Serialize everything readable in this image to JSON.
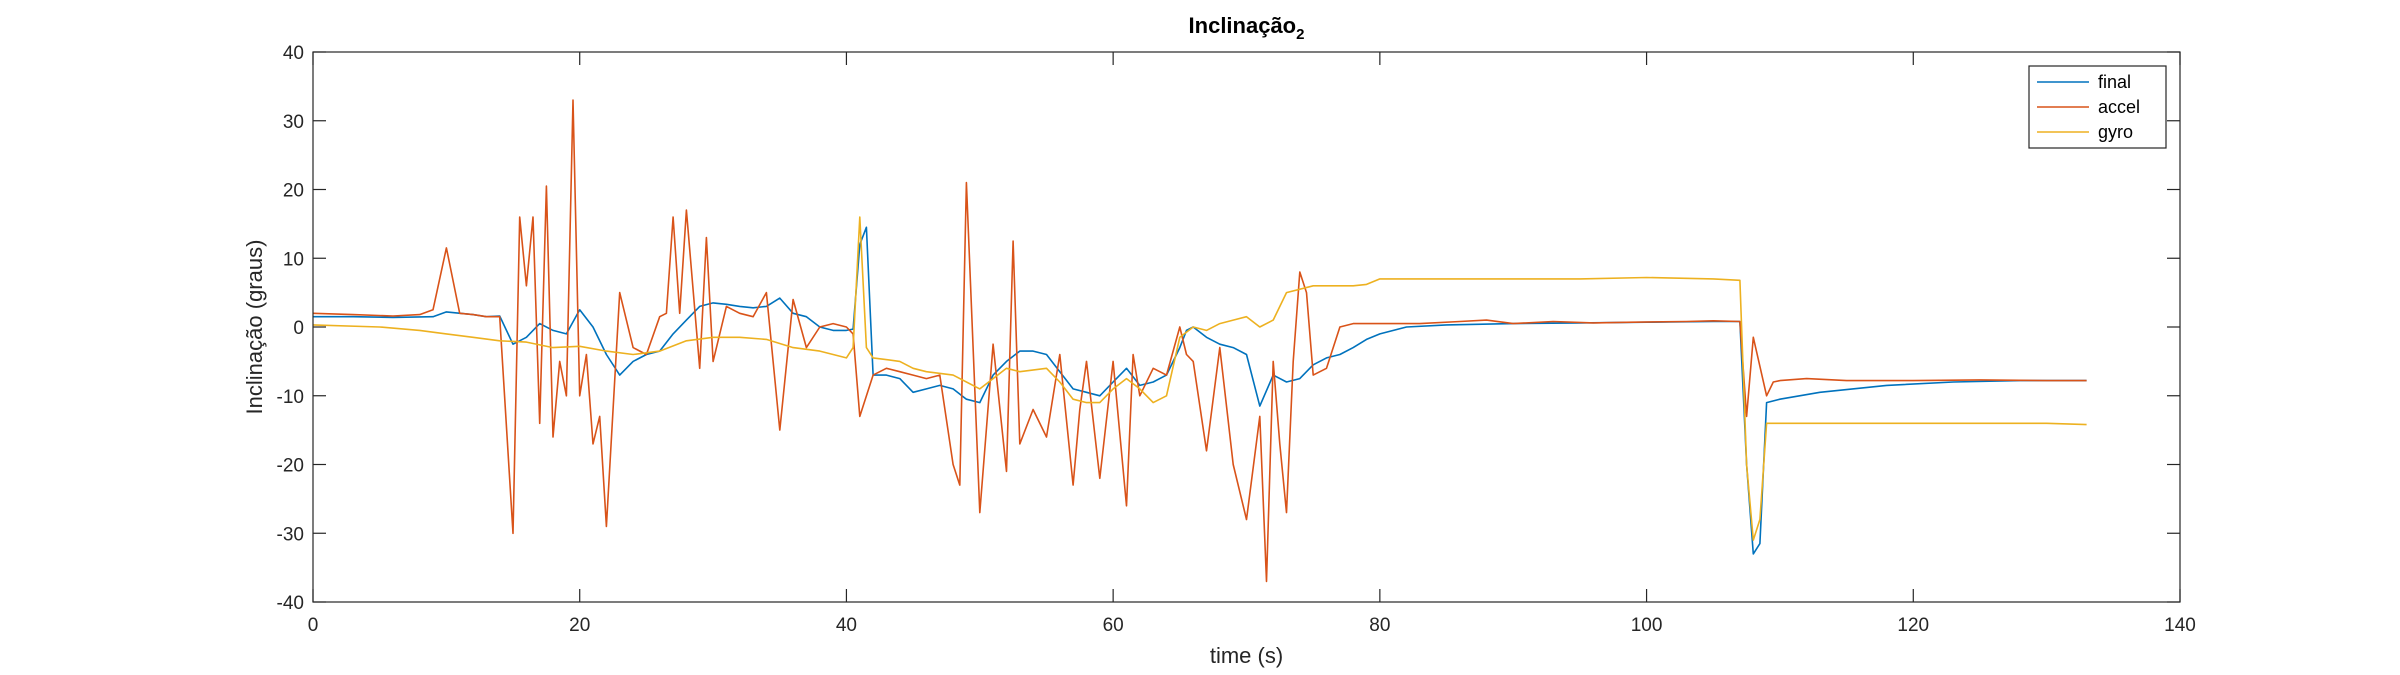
{
  "chart_data": {
    "type": "line",
    "title": "Inclinação",
    "title_subscript": "2",
    "xlabel": "time (s)",
    "ylabel": "Inclinação (graus)",
    "xlim": [
      0,
      140
    ],
    "ylim": [
      -40,
      40
    ],
    "xticks": [
      0,
      20,
      40,
      60,
      80,
      100,
      120,
      140
    ],
    "yticks": [
      -40,
      -30,
      -20,
      -10,
      0,
      10,
      20,
      30,
      40
    ],
    "grid": false,
    "legend_position": "top-right",
    "series": [
      {
        "name": "final",
        "color": "#0072BD",
        "points": [
          [
            0,
            1.5
          ],
          [
            3,
            1.5
          ],
          [
            6,
            1.4
          ],
          [
            9,
            1.5
          ],
          [
            10,
            2.2
          ],
          [
            12,
            1.8
          ],
          [
            13,
            1.5
          ],
          [
            14,
            1.6
          ],
          [
            15,
            -2.5
          ],
          [
            16,
            -1.5
          ],
          [
            17,
            0.5
          ],
          [
            18,
            -0.5
          ],
          [
            19,
            -1
          ],
          [
            20,
            2.5
          ],
          [
            21,
            0
          ],
          [
            22,
            -4
          ],
          [
            23,
            -7
          ],
          [
            24,
            -5
          ],
          [
            25,
            -4
          ],
          [
            26,
            -3.5
          ],
          [
            27,
            -1
          ],
          [
            28,
            1
          ],
          [
            29,
            3
          ],
          [
            30,
            3.5
          ],
          [
            31,
            3.3
          ],
          [
            32,
            3
          ],
          [
            33,
            2.8
          ],
          [
            34,
            3
          ],
          [
            35,
            4.2
          ],
          [
            36,
            2
          ],
          [
            37,
            1.5
          ],
          [
            38,
            0
          ],
          [
            39,
            -0.5
          ],
          [
            40,
            -0.5
          ],
          [
            40.5,
            -0.3
          ],
          [
            41,
            12
          ],
          [
            41.5,
            14.5
          ],
          [
            42,
            -7
          ],
          [
            43,
            -7
          ],
          [
            44,
            -7.5
          ],
          [
            45,
            -9.5
          ],
          [
            46,
            -9
          ],
          [
            47,
            -8.5
          ],
          [
            48,
            -9
          ],
          [
            49,
            -10.5
          ],
          [
            50,
            -11
          ],
          [
            51,
            -7
          ],
          [
            52,
            -5
          ],
          [
            53,
            -3.5
          ],
          [
            54,
            -3.5
          ],
          [
            55,
            -4
          ],
          [
            56,
            -6.5
          ],
          [
            57,
            -9
          ],
          [
            58,
            -9.5
          ],
          [
            59,
            -10
          ],
          [
            60,
            -8
          ],
          [
            61,
            -6
          ],
          [
            62,
            -8.5
          ],
          [
            63,
            -8
          ],
          [
            64,
            -7
          ],
          [
            65,
            -3
          ],
          [
            65.5,
            -0.5
          ],
          [
            66,
            0
          ],
          [
            67,
            -1.5
          ],
          [
            68,
            -2.5
          ],
          [
            69,
            -3
          ],
          [
            70,
            -4
          ],
          [
            71,
            -11.5
          ],
          [
            72,
            -7
          ],
          [
            73,
            -8
          ],
          [
            74,
            -7.5
          ],
          [
            75,
            -5.5
          ],
          [
            76,
            -4.5
          ],
          [
            77,
            -4
          ],
          [
            78,
            -3
          ],
          [
            79,
            -1.8
          ],
          [
            80,
            -1
          ],
          [
            82,
            0
          ],
          [
            85,
            0.3
          ],
          [
            90,
            0.5
          ],
          [
            95,
            0.6
          ],
          [
            100,
            0.7
          ],
          [
            105,
            0.8
          ],
          [
            107,
            0.8
          ],
          [
            107.5,
            -20
          ],
          [
            108,
            -33
          ],
          [
            108.5,
            -31.5
          ],
          [
            109,
            -11
          ],
          [
            110,
            -10.5
          ],
          [
            113,
            -9.5
          ],
          [
            118,
            -8.5
          ],
          [
            123,
            -8
          ],
          [
            128,
            -7.8
          ],
          [
            133,
            -7.8
          ]
        ]
      },
      {
        "name": "accel",
        "color": "#D95319",
        "points": [
          [
            0,
            2
          ],
          [
            3,
            1.8
          ],
          [
            6,
            1.6
          ],
          [
            8,
            1.8
          ],
          [
            9,
            2.5
          ],
          [
            10,
            11.5
          ],
          [
            11,
            2
          ],
          [
            12,
            1.8
          ],
          [
            13,
            1.5
          ],
          [
            14,
            1.5
          ],
          [
            15,
            -30
          ],
          [
            15.5,
            16
          ],
          [
            16,
            6
          ],
          [
            16.5,
            16
          ],
          [
            17,
            -14
          ],
          [
            17.5,
            20.5
          ],
          [
            18,
            -16
          ],
          [
            18.5,
            -5
          ],
          [
            19,
            -10
          ],
          [
            19.5,
            33
          ],
          [
            20,
            -10
          ],
          [
            20.5,
            -4
          ],
          [
            21,
            -17
          ],
          [
            21.5,
            -13
          ],
          [
            22,
            -29
          ],
          [
            23,
            5
          ],
          [
            24,
            -3
          ],
          [
            25,
            -4
          ],
          [
            26,
            1.5
          ],
          [
            26.5,
            2
          ],
          [
            27,
            16
          ],
          [
            27.5,
            2
          ],
          [
            28,
            17
          ],
          [
            29,
            -6
          ],
          [
            29.5,
            13
          ],
          [
            30,
            -5
          ],
          [
            31,
            3
          ],
          [
            32,
            2
          ],
          [
            33,
            1.5
          ],
          [
            34,
            5
          ],
          [
            35,
            -15
          ],
          [
            36,
            4
          ],
          [
            37,
            -3
          ],
          [
            38,
            0
          ],
          [
            39,
            0.5
          ],
          [
            40,
            0
          ],
          [
            40.5,
            -1
          ],
          [
            41,
            -13
          ],
          [
            42,
            -7
          ],
          [
            43,
            -6
          ],
          [
            44,
            -6.5
          ],
          [
            45,
            -7
          ],
          [
            46,
            -7.5
          ],
          [
            47,
            -7
          ],
          [
            48,
            -20
          ],
          [
            48.5,
            -23
          ],
          [
            49,
            21
          ],
          [
            50,
            -27
          ],
          [
            51,
            -2.5
          ],
          [
            52,
            -21
          ],
          [
            52.5,
            12.5
          ],
          [
            53,
            -17
          ],
          [
            54,
            -12
          ],
          [
            55,
            -16
          ],
          [
            56,
            -4
          ],
          [
            57,
            -23
          ],
          [
            57.5,
            -12
          ],
          [
            58,
            -5
          ],
          [
            59,
            -22
          ],
          [
            60,
            -5
          ],
          [
            61,
            -26
          ],
          [
            61.5,
            -4
          ],
          [
            62,
            -10
          ],
          [
            63,
            -6
          ],
          [
            64,
            -7
          ],
          [
            65,
            0
          ],
          [
            65.5,
            -4
          ],
          [
            66,
            -5
          ],
          [
            67,
            -18
          ],
          [
            68,
            -3
          ],
          [
            69,
            -20
          ],
          [
            70,
            -28
          ],
          [
            71,
            -13
          ],
          [
            71.5,
            -37
          ],
          [
            72,
            -5
          ],
          [
            72.5,
            -17
          ],
          [
            73,
            -27
          ],
          [
            73.5,
            -5
          ],
          [
            74,
            8
          ],
          [
            74.5,
            5
          ],
          [
            75,
            -7
          ],
          [
            76,
            -6
          ],
          [
            77,
            0
          ],
          [
            78,
            0.5
          ],
          [
            80,
            0.5
          ],
          [
            83,
            0.5
          ],
          [
            86,
            0.8
          ],
          [
            88,
            1
          ],
          [
            90,
            0.5
          ],
          [
            93,
            0.8
          ],
          [
            96,
            0.6
          ],
          [
            99,
            0.7
          ],
          [
            103,
            0.8
          ],
          [
            105,
            0.9
          ],
          [
            107,
            0.8
          ],
          [
            107.5,
            -13
          ],
          [
            108,
            -1.5
          ],
          [
            109,
            -10
          ],
          [
            109.5,
            -8
          ],
          [
            110,
            -7.8
          ],
          [
            112,
            -7.5
          ],
          [
            115,
            -7.8
          ],
          [
            120,
            -7.8
          ],
          [
            125,
            -7.7
          ],
          [
            130,
            -7.8
          ],
          [
            133,
            -7.8
          ]
        ]
      },
      {
        "name": "gyro",
        "color": "#EDB120",
        "points": [
          [
            0,
            0.3
          ],
          [
            5,
            0
          ],
          [
            8,
            -0.5
          ],
          [
            10,
            -1
          ],
          [
            12,
            -1.5
          ],
          [
            14,
            -2
          ],
          [
            16,
            -2.2
          ],
          [
            18,
            -3
          ],
          [
            20,
            -2.8
          ],
          [
            22,
            -3.5
          ],
          [
            24,
            -4
          ],
          [
            26,
            -3.5
          ],
          [
            28,
            -2
          ],
          [
            30,
            -1.5
          ],
          [
            32,
            -1.5
          ],
          [
            34,
            -1.8
          ],
          [
            36,
            -3
          ],
          [
            38,
            -3.5
          ],
          [
            40,
            -4.5
          ],
          [
            40.5,
            -3
          ],
          [
            41,
            16
          ],
          [
            41.5,
            -3
          ],
          [
            42,
            -4.5
          ],
          [
            44,
            -5
          ],
          [
            45,
            -6
          ],
          [
            46,
            -6.5
          ],
          [
            48,
            -7
          ],
          [
            50,
            -9
          ],
          [
            51,
            -7.5
          ],
          [
            52,
            -6
          ],
          [
            53,
            -6.5
          ],
          [
            55,
            -6
          ],
          [
            56,
            -8
          ],
          [
            57,
            -10.5
          ],
          [
            58,
            -11
          ],
          [
            59,
            -11
          ],
          [
            60,
            -9
          ],
          [
            61,
            -7.5
          ],
          [
            62,
            -9
          ],
          [
            63,
            -11
          ],
          [
            64,
            -10
          ],
          [
            65,
            -1.5
          ],
          [
            66,
            0
          ],
          [
            67,
            -0.5
          ],
          [
            68,
            0.5
          ],
          [
            69,
            1
          ],
          [
            70,
            1.5
          ],
          [
            71,
            0
          ],
          [
            72,
            1
          ],
          [
            73,
            5
          ],
          [
            75,
            6
          ],
          [
            78,
            6
          ],
          [
            79,
            6.2
          ],
          [
            80,
            7
          ],
          [
            85,
            7
          ],
          [
            90,
            7
          ],
          [
            95,
            7
          ],
          [
            100,
            7.2
          ],
          [
            105,
            7
          ],
          [
            107,
            6.8
          ],
          [
            107.5,
            -20
          ],
          [
            108,
            -31
          ],
          [
            108.5,
            -28
          ],
          [
            109,
            -14
          ],
          [
            110,
            -14
          ],
          [
            115,
            -14
          ],
          [
            120,
            -14
          ],
          [
            125,
            -14
          ],
          [
            130,
            -14
          ],
          [
            133,
            -14.2
          ]
        ]
      }
    ]
  }
}
